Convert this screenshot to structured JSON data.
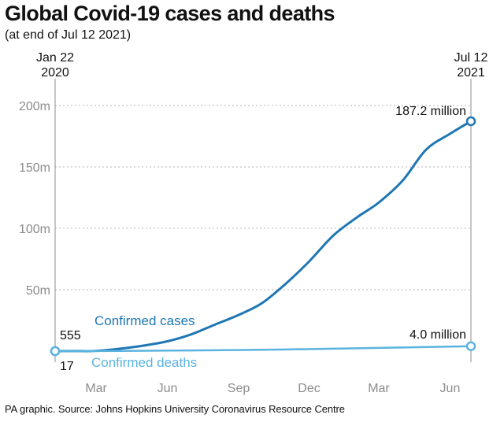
{
  "title": "Global Covid-19 cases and deaths",
  "subtitle": "(at end of Jul 12 2021)",
  "source": "PA graphic. Source: Johns Hopkins University Coronavirus Resource Centre",
  "chart_data": {
    "type": "line",
    "start_date": [
      "Jan 22",
      "2020"
    ],
    "end_date": [
      "Jul 12",
      "2021"
    ],
    "x_tick_labels": [
      "Mar",
      "Jun",
      "Sep",
      "Dec",
      "Mar",
      "Jun"
    ],
    "x_tick_dates": [
      "2020-03-15",
      "2020-06-15",
      "2020-09-15",
      "2020-12-15",
      "2021-03-15",
      "2021-06-15"
    ],
    "ylim": [
      0,
      200
    ],
    "y_unit": "m",
    "y_ticks": [
      50,
      100,
      150,
      200
    ],
    "y_tick_labels": [
      "50m",
      "100m",
      "150m",
      "200m"
    ],
    "grid": "horizontal dotted",
    "series": [
      {
        "name": "Confirmed cases",
        "color": "#1f77b4",
        "start_label": "555",
        "end_label": "187.2 million",
        "x": [
          "2020-01-22",
          "2020-02-15",
          "2020-03-15",
          "2020-04-15",
          "2020-05-15",
          "2020-06-15",
          "2020-07-15",
          "2020-08-15",
          "2020-09-15",
          "2020-10-15",
          "2020-11-15",
          "2020-12-15",
          "2021-01-15",
          "2021-02-15",
          "2021-03-15",
          "2021-04-15",
          "2021-05-15",
          "2021-06-15",
          "2021-07-12"
        ],
        "y": [
          0.000555,
          0.07,
          0.2,
          2.0,
          4.5,
          8.0,
          13.5,
          21.5,
          29.5,
          39.0,
          55.0,
          73.0,
          94.0,
          109.0,
          121.0,
          139.0,
          164.0,
          177.0,
          187.2
        ]
      },
      {
        "name": "Confirmed deaths",
        "color": "#5bb3e0",
        "start_label": "17",
        "end_label": "4.0 million",
        "x": [
          "2020-01-22",
          "2020-04-15",
          "2020-07-15",
          "2020-10-15",
          "2021-01-15",
          "2021-04-15",
          "2021-07-12"
        ],
        "y": [
          1.7e-05,
          0.14,
          0.58,
          1.1,
          2.0,
          3.0,
          4.0
        ]
      }
    ]
  }
}
